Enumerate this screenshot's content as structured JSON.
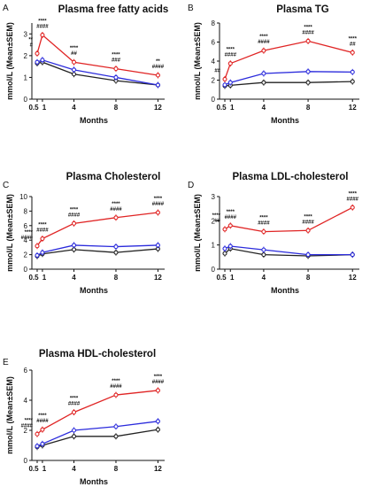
{
  "colors": {
    "black_series": "#222222",
    "blue_series": "#2b2bdc",
    "red_series": "#e02424",
    "axis": "#111111"
  },
  "chart_data": [
    {
      "panel": "A",
      "type": "line",
      "title": "Plasma free fatty acids",
      "xlabel": "Months",
      "ylabel": "mmol/L (Mean±SEM)",
      "x": [
        0.5,
        1,
        4,
        8,
        12
      ],
      "x_tick_labels": [
        "0.5",
        "1",
        "4",
        "8",
        "12"
      ],
      "ylim": [
        0,
        3.5
      ],
      "yticks": [
        0,
        1,
        2,
        3
      ],
      "series": [
        {
          "values": [
            1.65,
            1.7,
            1.15,
            0.85,
            0.65
          ]
        },
        {
          "values": [
            1.7,
            1.8,
            1.35,
            1.0,
            0.65
          ]
        },
        {
          "values": [
            2.1,
            2.95,
            1.7,
            1.4,
            1.1
          ]
        }
      ],
      "annotations": [
        {
          "x": 0.5,
          "lines": [
            "**",
            "#"
          ]
        },
        {
          "x": 1,
          "lines": [
            "****",
            "####"
          ]
        },
        {
          "x": 4,
          "lines": [
            "****",
            "##"
          ]
        },
        {
          "x": 8,
          "lines": [
            "****",
            "###"
          ]
        },
        {
          "x": 12,
          "lines": [
            "**",
            "####"
          ]
        }
      ]
    },
    {
      "panel": "B",
      "type": "line",
      "title": "Plasma TG",
      "xlabel": "Months",
      "ylabel": "mmol/L (Mean±SEM)",
      "x": [
        0.5,
        1,
        4,
        8,
        12
      ],
      "x_tick_labels": [
        "0.5",
        "1",
        "4",
        "8",
        "12"
      ],
      "ylim": [
        0,
        8
      ],
      "yticks": [
        0,
        2,
        4,
        6,
        8
      ],
      "series": [
        {
          "values": [
            1.4,
            1.45,
            1.75,
            1.75,
            1.85
          ]
        },
        {
          "values": [
            1.5,
            1.75,
            2.7,
            2.9,
            2.85
          ]
        },
        {
          "values": [
            2.1,
            3.75,
            5.1,
            6.1,
            4.9
          ]
        }
      ],
      "annotations": [
        {
          "x": 0.5,
          "lines": [
            "##"
          ]
        },
        {
          "x": 1,
          "lines": [
            "****",
            "####"
          ]
        },
        {
          "x": 4,
          "lines": [
            "****",
            "####"
          ]
        },
        {
          "x": 8,
          "lines": [
            "****",
            "####"
          ]
        },
        {
          "x": 12,
          "lines": [
            "****",
            "##"
          ]
        }
      ]
    },
    {
      "panel": "C",
      "type": "line",
      "title": "Plasma Cholesterol",
      "xlabel": "Months",
      "ylabel": "mmol/L (Mean±SEM)",
      "x": [
        0.5,
        1,
        4,
        8,
        12
      ],
      "x_tick_labels": [
        "0.5",
        "1",
        "4",
        "8",
        "12"
      ],
      "ylim": [
        0,
        10
      ],
      "yticks": [
        0,
        2,
        4,
        6,
        8,
        10
      ],
      "series": [
        {
          "values": [
            1.8,
            2.1,
            2.7,
            2.3,
            2.8
          ]
        },
        {
          "values": [
            1.9,
            2.3,
            3.3,
            3.1,
            3.3
          ]
        },
        {
          "values": [
            3.2,
            4.2,
            6.3,
            7.1,
            7.8
          ]
        }
      ],
      "annotations": [
        {
          "x": 0.5,
          "lines": [
            "****",
            "####"
          ]
        },
        {
          "x": 1,
          "lines": [
            "****",
            "####"
          ]
        },
        {
          "x": 4,
          "lines": [
            "****",
            "####"
          ]
        },
        {
          "x": 8,
          "lines": [
            "****",
            "####"
          ]
        },
        {
          "x": 12,
          "lines": [
            "****",
            "####"
          ]
        }
      ]
    },
    {
      "panel": "D",
      "type": "line",
      "title": "Plasma LDL-cholesterol",
      "xlabel": "Months",
      "ylabel": "mmol/L (Mean±SEM)",
      "x": [
        0.5,
        1,
        4,
        8,
        12
      ],
      "x_tick_labels": [
        "0.5",
        "1",
        "4",
        "8",
        "12"
      ],
      "ylim": [
        0,
        3
      ],
      "yticks": [
        0,
        1,
        2,
        3
      ],
      "series": [
        {
          "values": [
            0.65,
            0.85,
            0.6,
            0.55,
            0.6
          ]
        },
        {
          "values": [
            0.85,
            0.95,
            0.8,
            0.6,
            0.6
          ]
        },
        {
          "values": [
            1.65,
            1.8,
            1.55,
            1.6,
            2.55
          ]
        }
      ],
      "annotations": [
        {
          "x": 0.5,
          "lines": [
            "****",
            "##"
          ]
        },
        {
          "x": 1,
          "lines": [
            "****",
            "####"
          ]
        },
        {
          "x": 4,
          "lines": [
            "****",
            "####"
          ]
        },
        {
          "x": 8,
          "lines": [
            "****",
            "####"
          ]
        },
        {
          "x": 12,
          "lines": [
            "****",
            "####"
          ]
        }
      ]
    },
    {
      "panel": "E",
      "type": "line",
      "title": "Plasma HDL-cholesterol",
      "xlabel": "Months",
      "ylabel": "mmol/L (Mean±SEM)",
      "x": [
        0.5,
        1,
        4,
        8,
        12
      ],
      "x_tick_labels": [
        "0.5",
        "1",
        "4",
        "8",
        "12"
      ],
      "ylim": [
        0,
        6
      ],
      "yticks": [
        0,
        2,
        4,
        6
      ],
      "series": [
        {
          "values": [
            0.9,
            1.0,
            1.6,
            1.6,
            2.05
          ]
        },
        {
          "values": [
            0.95,
            1.1,
            2.0,
            2.25,
            2.6
          ]
        },
        {
          "values": [
            1.75,
            2.05,
            3.2,
            4.35,
            4.65
          ]
        }
      ],
      "annotations": [
        {
          "x": 0.5,
          "lines": [
            "****",
            "####"
          ]
        },
        {
          "x": 1,
          "lines": [
            "****",
            "####"
          ]
        },
        {
          "x": 4,
          "lines": [
            "****",
            "####"
          ]
        },
        {
          "x": 8,
          "lines": [
            "****",
            "####"
          ]
        },
        {
          "x": 12,
          "lines": [
            "****",
            "####"
          ]
        }
      ]
    }
  ]
}
